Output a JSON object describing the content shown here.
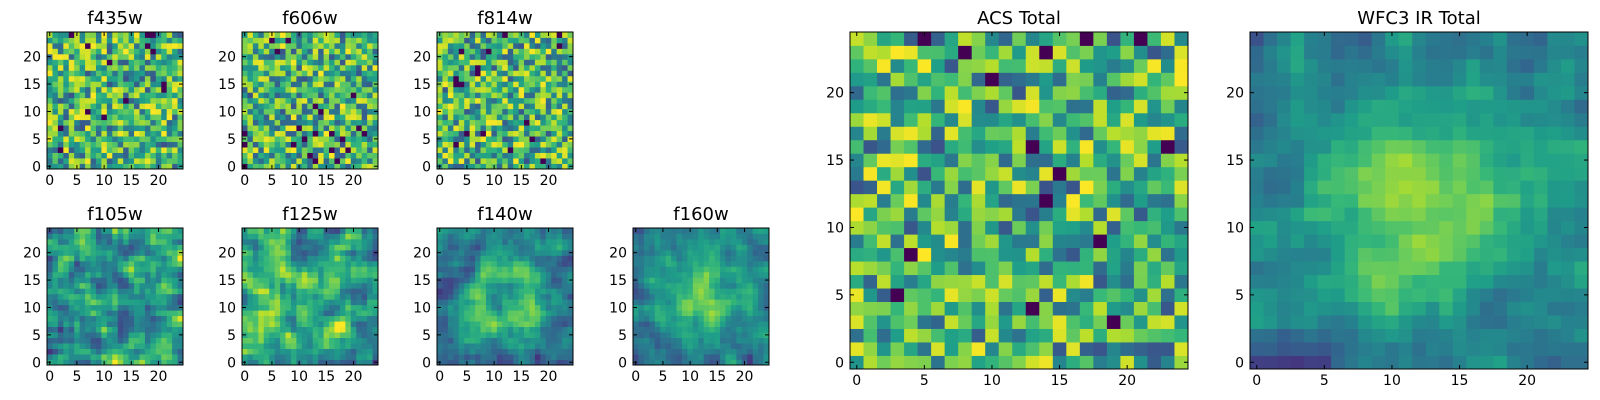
{
  "figure": {
    "background": "#ffffff"
  },
  "chart_data": [
    {
      "type": "heatmap",
      "title": "f435w",
      "xlim": [
        -0.5,
        24.5
      ],
      "ylim": [
        -0.5,
        24.5
      ],
      "x_ticks": [
        0,
        5,
        10,
        15,
        20
      ],
      "y_ticks": [
        0,
        5,
        10,
        15,
        20
      ],
      "grid_size": 25,
      "colormap": "viridis",
      "seed": 11,
      "pattern": "noise"
    },
    {
      "type": "heatmap",
      "title": "f606w",
      "xlim": [
        -0.5,
        24.5
      ],
      "ylim": [
        -0.5,
        24.5
      ],
      "x_ticks": [
        0,
        5,
        10,
        15,
        20
      ],
      "y_ticks": [
        0,
        5,
        10,
        15,
        20
      ],
      "grid_size": 25,
      "colormap": "viridis",
      "seed": 23,
      "pattern": "noise"
    },
    {
      "type": "heatmap",
      "title": "f814w",
      "xlim": [
        -0.5,
        24.5
      ],
      "ylim": [
        -0.5,
        24.5
      ],
      "x_ticks": [
        0,
        5,
        10,
        15,
        20
      ],
      "y_ticks": [
        0,
        5,
        10,
        15,
        20
      ],
      "grid_size": 25,
      "colormap": "viridis",
      "seed": 37,
      "pattern": "noise"
    },
    {
      "type": "heatmap",
      "title": "f105w",
      "xlim": [
        -0.5,
        24.5
      ],
      "ylim": [
        -0.5,
        24.5
      ],
      "x_ticks": [
        0,
        5,
        10,
        15,
        20
      ],
      "y_ticks": [
        0,
        5,
        10,
        15,
        20
      ],
      "grid_size": 25,
      "colormap": "viridis",
      "seed": 41,
      "pattern": "smooth"
    },
    {
      "type": "heatmap",
      "title": "f125w",
      "xlim": [
        -0.5,
        24.5
      ],
      "ylim": [
        -0.5,
        24.5
      ],
      "x_ticks": [
        0,
        5,
        10,
        15,
        20
      ],
      "y_ticks": [
        0,
        5,
        10,
        15,
        20
      ],
      "grid_size": 25,
      "colormap": "viridis",
      "seed": 53,
      "pattern": "smooth"
    },
    {
      "type": "heatmap",
      "title": "f140w",
      "xlim": [
        -0.5,
        24.5
      ],
      "ylim": [
        -0.5,
        24.5
      ],
      "x_ticks": [
        0,
        5,
        10,
        15,
        20
      ],
      "y_ticks": [
        0,
        5,
        10,
        15,
        20
      ],
      "grid_size": 25,
      "colormap": "viridis",
      "seed": 67,
      "pattern": "ring"
    },
    {
      "type": "heatmap",
      "title": "f160w",
      "xlim": [
        -0.5,
        24.5
      ],
      "ylim": [
        -0.5,
        24.5
      ],
      "x_ticks": [
        0,
        5,
        10,
        15,
        20
      ],
      "y_ticks": [
        0,
        5,
        10,
        15,
        20
      ],
      "grid_size": 25,
      "colormap": "viridis",
      "seed": 79,
      "pattern": "center"
    },
    {
      "type": "heatmap",
      "title": "ACS Total",
      "xlim": [
        -0.5,
        24.5
      ],
      "ylim": [
        -0.5,
        24.5
      ],
      "x_ticks": [
        0,
        5,
        10,
        15,
        20
      ],
      "y_ticks": [
        0,
        5,
        10,
        15,
        20
      ],
      "grid_size": 25,
      "colormap": "viridis",
      "seed": 83,
      "pattern": "noise"
    },
    {
      "type": "heatmap",
      "title": "WFC3 IR Total",
      "xlim": [
        -0.5,
        24.5
      ],
      "ylim": [
        -0.5,
        24.5
      ],
      "x_ticks": [
        0,
        5,
        10,
        15,
        20
      ],
      "y_ticks": [
        0,
        5,
        10,
        15,
        20
      ],
      "grid_size": 25,
      "colormap": "viridis",
      "seed": 97,
      "pattern": "center"
    }
  ]
}
